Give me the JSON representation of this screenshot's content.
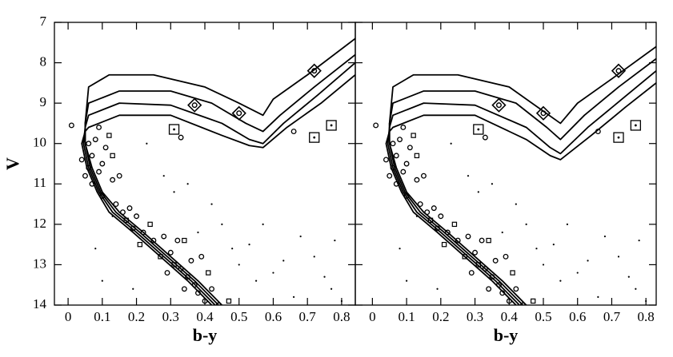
{
  "chart_data": [
    {
      "type": "scatter",
      "xlabel": "b-y",
      "ylabel": "V",
      "xlim": [
        -0.04,
        0.84
      ],
      "ylim": [
        14,
        7
      ],
      "xticks": [
        0,
        0.1,
        0.2,
        0.3,
        0.4,
        0.5,
        0.6,
        0.7,
        0.8
      ],
      "yticks": [
        7,
        8,
        9,
        10,
        11,
        12,
        13,
        14
      ],
      "ytick_labels": true,
      "series": [
        {
          "mode": "line",
          "color": "#000",
          "x": [
            0.45,
            0.38,
            0.3,
            0.22,
            0.15,
            0.1,
            0.07,
            0.05,
            0.05,
            0.06,
            0.12,
            0.25,
            0.4,
            0.5,
            0.57,
            0.6,
            0.7,
            0.84
          ],
          "values": [
            14,
            13.4,
            12.8,
            12.2,
            11.7,
            11.2,
            10.6,
            10.0,
            9.5,
            8.6,
            8.3,
            8.3,
            8.6,
            9.0,
            9.3,
            8.9,
            8.3,
            7.4
          ]
        },
        {
          "mode": "line",
          "color": "#000",
          "x": [
            0.44,
            0.37,
            0.29,
            0.21,
            0.14,
            0.095,
            0.065,
            0.05,
            0.05,
            0.06,
            0.15,
            0.3,
            0.42,
            0.52,
            0.57,
            0.62,
            0.72,
            0.84
          ],
          "values": [
            14,
            13.4,
            12.8,
            12.2,
            11.7,
            11.2,
            10.6,
            10.0,
            9.5,
            9.0,
            8.7,
            8.7,
            9.0,
            9.5,
            9.7,
            9.3,
            8.6,
            7.8
          ]
        },
        {
          "mode": "line",
          "color": "#000",
          "x": [
            0.43,
            0.36,
            0.28,
            0.2,
            0.13,
            0.09,
            0.06,
            0.045,
            0.05,
            0.06,
            0.15,
            0.3,
            0.45,
            0.53,
            0.57,
            0.63,
            0.73,
            0.84
          ],
          "values": [
            14,
            13.4,
            12.8,
            12.2,
            11.7,
            11.2,
            10.6,
            10.0,
            9.6,
            9.3,
            9.0,
            9.05,
            9.5,
            9.9,
            10.0,
            9.5,
            8.8,
            8.0
          ]
        },
        {
          "mode": "line",
          "color": "#000",
          "x": [
            0.42,
            0.35,
            0.27,
            0.19,
            0.12,
            0.085,
            0.055,
            0.04,
            0.05,
            0.06,
            0.15,
            0.3,
            0.45,
            0.53,
            0.57,
            0.64,
            0.74,
            0.84
          ],
          "values": [
            14,
            13.4,
            12.8,
            12.2,
            11.7,
            11.2,
            10.6,
            10.0,
            9.7,
            9.6,
            9.3,
            9.3,
            9.8,
            10.05,
            10.1,
            9.6,
            9.0,
            8.3
          ]
        },
        {
          "mode": "marker",
          "marker": "circle",
          "color": "#000",
          "x": [
            0.01,
            0.04,
            0.05,
            0.06,
            0.07,
            0.08,
            0.06,
            0.09,
            0.07,
            0.1,
            0.1,
            0.11,
            0.13,
            0.14,
            0.16,
            0.18,
            0.2,
            0.19,
            0.22,
            0.25,
            0.28,
            0.3,
            0.33,
            0.35,
            0.37,
            0.38,
            0.4,
            0.36,
            0.32,
            0.15,
            0.09,
            0.33,
            0.66,
            0.42,
            0.44,
            0.34,
            0.29,
            0.39
          ],
          "values": [
            9.55,
            10.4,
            10.8,
            10.0,
            10.3,
            9.9,
            10.6,
            10.7,
            11.0,
            11.3,
            10.5,
            10.1,
            10.9,
            11.5,
            11.7,
            11.6,
            11.8,
            12.1,
            12.2,
            12.4,
            12.3,
            12.7,
            13.1,
            13.3,
            13.5,
            13.7,
            13.9,
            12.9,
            12.4,
            10.8,
            9.6,
            9.85,
            9.7,
            13.6,
            14.0,
            13.6,
            13.2,
            12.8
          ]
        },
        {
          "mode": "marker",
          "marker": "square",
          "color": "#000",
          "x": [
            0.12,
            0.13,
            0.17,
            0.21,
            0.24,
            0.27,
            0.31,
            0.34,
            0.41,
            0.47
          ],
          "values": [
            9.8,
            10.3,
            11.9,
            12.5,
            12.0,
            12.8,
            13.0,
            12.4,
            13.2,
            13.9
          ]
        },
        {
          "mode": "marker",
          "marker": "dot",
          "color": "#000",
          "x": [
            0.13,
            0.23,
            0.28,
            0.31,
            0.35,
            0.38,
            0.45,
            0.48,
            0.5,
            0.53,
            0.55,
            0.6,
            0.63,
            0.68,
            0.72,
            0.75,
            0.78,
            0.77,
            0.8,
            0.1,
            0.08,
            0.19,
            0.42,
            0.57,
            0.66
          ],
          "values": [
            11.8,
            10.0,
            10.8,
            11.2,
            11.0,
            12.2,
            12.0,
            12.6,
            13.0,
            12.5,
            13.4,
            13.2,
            12.9,
            12.3,
            12.8,
            13.3,
            12.4,
            13.6,
            13.9,
            13.4,
            12.6,
            13.6,
            11.5,
            12.0,
            13.8
          ]
        },
        {
          "mode": "marker",
          "marker": "diamond-dot",
          "color": "#000",
          "x": [
            0.37,
            0.5,
            0.72
          ],
          "values": [
            9.05,
            9.25,
            8.2
          ]
        },
        {
          "mode": "marker",
          "marker": "square-dot",
          "color": "#000",
          "x": [
            0.31,
            0.72,
            0.77
          ],
          "values": [
            9.65,
            9.85,
            9.55
          ]
        }
      ]
    },
    {
      "type": "scatter",
      "xlabel": "b-y",
      "xlim": [
        -0.05,
        0.83
      ],
      "ylim": [
        14,
        7
      ],
      "xticks": [
        0,
        0.1,
        0.2,
        0.3,
        0.4,
        0.5,
        0.6,
        0.7,
        0.8
      ],
      "yticks": [
        7,
        8,
        9,
        10,
        11,
        12,
        13,
        14
      ],
      "ytick_labels": false,
      "series": [
        {
          "mode": "line",
          "color": "#000",
          "x": [
            0.45,
            0.38,
            0.3,
            0.22,
            0.15,
            0.1,
            0.07,
            0.05,
            0.05,
            0.06,
            0.12,
            0.25,
            0.4,
            0.5,
            0.55,
            0.6,
            0.7,
            0.83
          ],
          "values": [
            14,
            13.4,
            12.8,
            12.2,
            11.7,
            11.2,
            10.6,
            10.0,
            9.5,
            8.6,
            8.3,
            8.3,
            8.6,
            9.2,
            9.5,
            9.0,
            8.4,
            7.6
          ]
        },
        {
          "mode": "line",
          "color": "#000",
          "x": [
            0.44,
            0.37,
            0.29,
            0.21,
            0.14,
            0.095,
            0.065,
            0.05,
            0.05,
            0.06,
            0.15,
            0.3,
            0.42,
            0.51,
            0.55,
            0.62,
            0.72,
            0.83
          ],
          "values": [
            14,
            13.4,
            12.8,
            12.2,
            11.7,
            11.2,
            10.6,
            10.0,
            9.5,
            9.0,
            8.7,
            8.7,
            9.0,
            9.6,
            9.9,
            9.3,
            8.6,
            7.9
          ]
        },
        {
          "mode": "line",
          "color": "#000",
          "x": [
            0.43,
            0.36,
            0.28,
            0.2,
            0.13,
            0.09,
            0.06,
            0.045,
            0.05,
            0.06,
            0.15,
            0.3,
            0.45,
            0.52,
            0.55,
            0.63,
            0.73,
            0.83
          ],
          "values": [
            14,
            13.4,
            12.8,
            12.2,
            11.7,
            11.2,
            10.6,
            10.0,
            9.6,
            9.3,
            9.0,
            9.05,
            9.6,
            10.1,
            10.25,
            9.6,
            8.9,
            8.2
          ]
        },
        {
          "mode": "line",
          "color": "#000",
          "x": [
            0.42,
            0.35,
            0.27,
            0.19,
            0.12,
            0.085,
            0.055,
            0.04,
            0.05,
            0.06,
            0.15,
            0.3,
            0.45,
            0.52,
            0.55,
            0.64,
            0.74,
            0.83
          ],
          "values": [
            14,
            13.4,
            12.8,
            12.2,
            11.7,
            11.2,
            10.6,
            10.0,
            9.7,
            9.6,
            9.3,
            9.3,
            9.9,
            10.3,
            10.4,
            9.8,
            9.1,
            8.5
          ]
        },
        {
          "mode": "marker",
          "marker": "circle",
          "color": "#000",
          "x": [
            0.01,
            0.04,
            0.05,
            0.06,
            0.07,
            0.08,
            0.06,
            0.09,
            0.07,
            0.1,
            0.1,
            0.11,
            0.13,
            0.14,
            0.16,
            0.18,
            0.2,
            0.19,
            0.22,
            0.25,
            0.28,
            0.3,
            0.33,
            0.35,
            0.37,
            0.38,
            0.4,
            0.36,
            0.32,
            0.15,
            0.09,
            0.33,
            0.66,
            0.42,
            0.44,
            0.34,
            0.29,
            0.39
          ],
          "values": [
            9.55,
            10.4,
            10.8,
            10.0,
            10.3,
            9.9,
            10.6,
            10.7,
            11.0,
            11.3,
            10.5,
            10.1,
            10.9,
            11.5,
            11.7,
            11.6,
            11.8,
            12.1,
            12.2,
            12.4,
            12.3,
            12.7,
            13.1,
            13.3,
            13.5,
            13.7,
            13.9,
            12.9,
            12.4,
            10.8,
            9.6,
            9.85,
            9.7,
            13.6,
            14.0,
            13.6,
            13.2,
            12.8
          ]
        },
        {
          "mode": "marker",
          "marker": "square",
          "color": "#000",
          "x": [
            0.12,
            0.13,
            0.17,
            0.21,
            0.24,
            0.27,
            0.31,
            0.34,
            0.41,
            0.47
          ],
          "values": [
            9.8,
            10.3,
            11.9,
            12.5,
            12.0,
            12.8,
            13.0,
            12.4,
            13.2,
            13.9
          ]
        },
        {
          "mode": "marker",
          "marker": "dot",
          "color": "#000",
          "x": [
            0.13,
            0.23,
            0.28,
            0.31,
            0.35,
            0.38,
            0.45,
            0.48,
            0.5,
            0.53,
            0.55,
            0.6,
            0.63,
            0.68,
            0.72,
            0.75,
            0.78,
            0.77,
            0.8,
            0.1,
            0.08,
            0.19,
            0.42,
            0.57,
            0.66
          ],
          "values": [
            11.8,
            10.0,
            10.8,
            11.2,
            11.0,
            12.2,
            12.0,
            12.6,
            13.0,
            12.5,
            13.4,
            13.2,
            12.9,
            12.3,
            12.8,
            13.3,
            12.4,
            13.6,
            13.9,
            13.4,
            12.6,
            13.6,
            11.5,
            12.0,
            13.8
          ]
        },
        {
          "mode": "marker",
          "marker": "diamond-dot",
          "color": "#000",
          "x": [
            0.37,
            0.5,
            0.72
          ],
          "values": [
            9.05,
            9.25,
            8.2
          ]
        },
        {
          "mode": "marker",
          "marker": "square-dot",
          "color": "#000",
          "x": [
            0.31,
            0.72,
            0.77
          ],
          "values": [
            9.65,
            9.85,
            9.55
          ]
        }
      ]
    }
  ]
}
